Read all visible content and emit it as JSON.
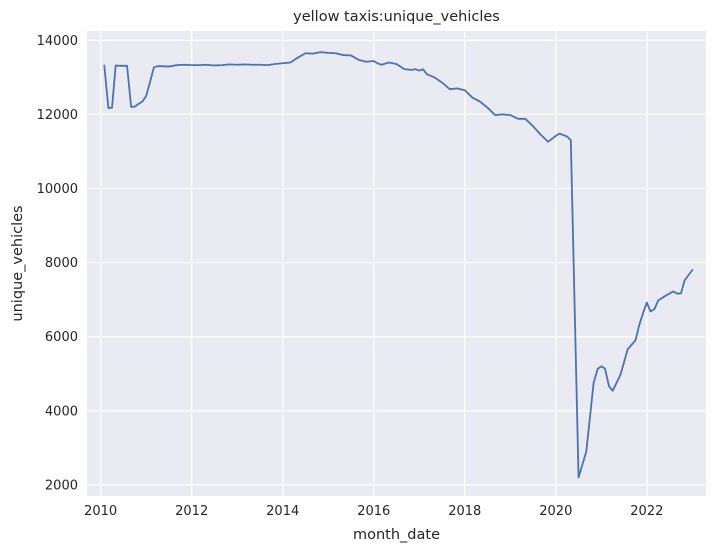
{
  "chart_data": {
    "type": "line",
    "title": "yellow taxis:unique_vehicles",
    "xlabel": "month_date",
    "ylabel": "unique_vehicles",
    "xlim": [
      2009.7,
      2023.3
    ],
    "ylim": [
      1700,
      14250
    ],
    "xticks": [
      2010,
      2012,
      2014,
      2016,
      2018,
      2020,
      2022
    ],
    "yticks": [
      2000,
      4000,
      6000,
      8000,
      10000,
      12000,
      14000
    ],
    "grid": true,
    "colors": {
      "background": "#eaeaf2",
      "grid": "#ffffff",
      "line": "#4c72b0",
      "text": "#262626"
    },
    "series": [
      {
        "x": [
          2010.08,
          2010.17,
          2010.25,
          2010.33,
          2010.42,
          2010.5,
          2010.58,
          2010.67,
          2010.75,
          2010.83,
          2010.92,
          2011.0,
          2011.08,
          2011.17,
          2011.25,
          2011.33,
          2011.5,
          2011.67,
          2011.83,
          2012.0,
          2012.17,
          2012.33,
          2012.5,
          2012.67,
          2012.83,
          2013.0,
          2013.17,
          2013.33,
          2013.5,
          2013.67,
          2013.83,
          2014.0,
          2014.17,
          2014.33,
          2014.5,
          2014.67,
          2014.83,
          2015.0,
          2015.17,
          2015.33,
          2015.5,
          2015.67,
          2015.83,
          2016.0,
          2016.08,
          2016.17,
          2016.33,
          2016.5,
          2016.67,
          2016.83,
          2016.92,
          2017.0,
          2017.08,
          2017.17,
          2017.33,
          2017.5,
          2017.67,
          2017.83,
          2018.0,
          2018.17,
          2018.33,
          2018.5,
          2018.67,
          2018.83,
          2019.0,
          2019.17,
          2019.33,
          2019.5,
          2019.67,
          2019.83,
          2020.0,
          2020.08,
          2020.17,
          2020.25,
          2020.33,
          2020.5,
          2020.67,
          2020.83,
          2020.92,
          2021.0,
          2021.08,
          2021.17,
          2021.25,
          2021.42,
          2021.58,
          2021.75,
          2021.83,
          2021.92,
          2022.0,
          2022.08,
          2022.17,
          2022.25,
          2022.42,
          2022.58,
          2022.67,
          2022.75,
          2022.83,
          2023.0
        ],
        "y": [
          13320,
          12170,
          12180,
          13320,
          13310,
          13310,
          13310,
          12200,
          12210,
          12280,
          12350,
          12500,
          12850,
          13270,
          13300,
          13300,
          13290,
          13330,
          13340,
          13330,
          13330,
          13340,
          13320,
          13330,
          13350,
          13340,
          13350,
          13340,
          13340,
          13330,
          13360,
          13380,
          13400,
          13530,
          13650,
          13640,
          13680,
          13660,
          13650,
          13600,
          13590,
          13470,
          13420,
          13440,
          13380,
          13340,
          13400,
          13360,
          13220,
          13200,
          13220,
          13180,
          13220,
          13080,
          13000,
          12860,
          12680,
          12700,
          12650,
          12450,
          12350,
          12180,
          11980,
          12000,
          11980,
          11880,
          11880,
          11680,
          11450,
          11260,
          11420,
          11480,
          11440,
          11400,
          11300,
          2200,
          2900,
          4750,
          5130,
          5200,
          5140,
          4660,
          4540,
          4970,
          5660,
          5900,
          6300,
          6650,
          6920,
          6680,
          6750,
          6980,
          7110,
          7220,
          7160,
          7170,
          7520,
          7800
        ]
      }
    ]
  }
}
